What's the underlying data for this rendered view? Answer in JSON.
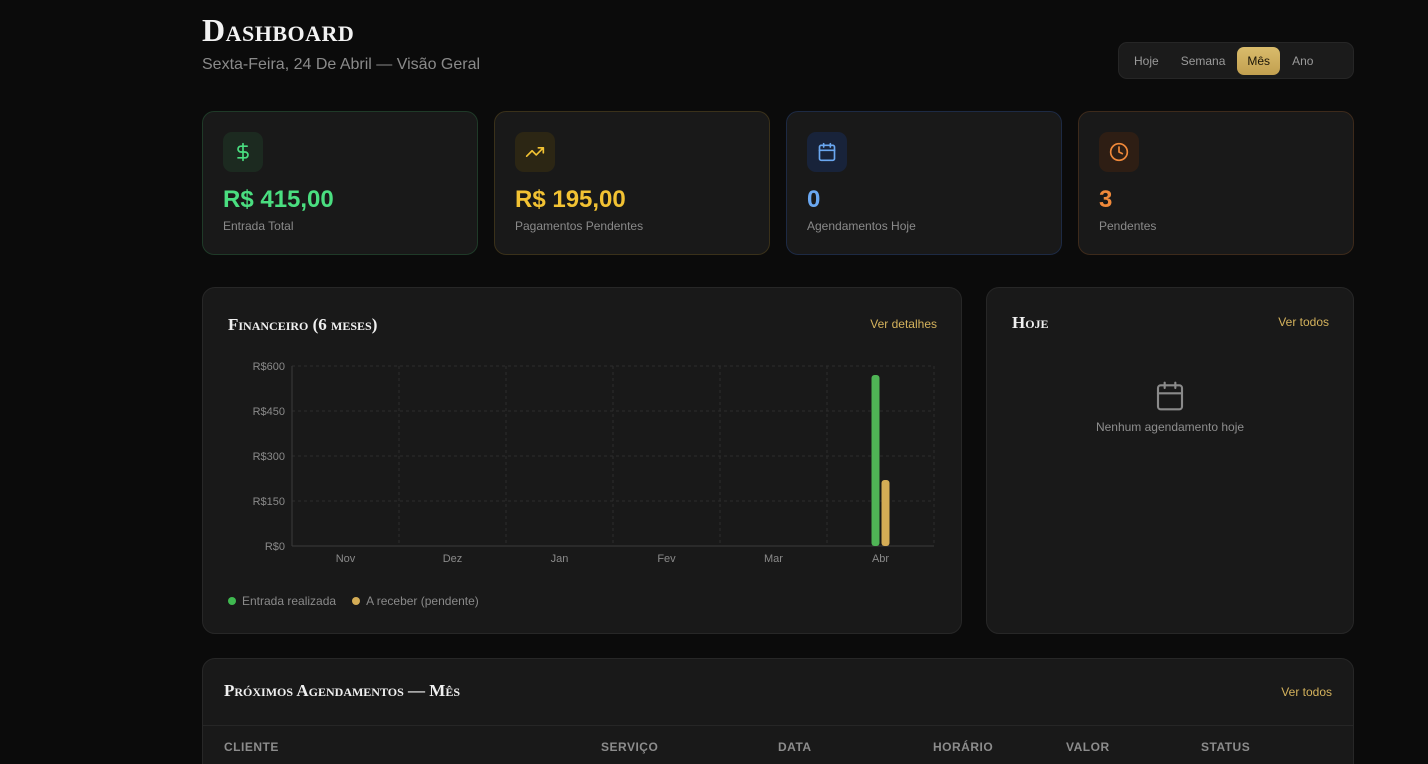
{
  "header": {
    "title": "Dashboard",
    "subtitle": "Sexta-Feira, 24 De Abril — Visão Geral",
    "periods": [
      "Hoje",
      "Semana",
      "Mês",
      "Ano"
    ],
    "active_period": "Mês"
  },
  "stats": [
    {
      "value": "R$ 415,00",
      "label": "Entrada Total",
      "icon": "dollar-icon",
      "color": "#4ade80",
      "icon_bg": "#1c2a20",
      "border": "#1f3a28"
    },
    {
      "value": "R$ 195,00",
      "label": "Pagamentos Pendentes",
      "icon": "trending-up-icon",
      "color": "#f2c233",
      "icon_bg": "#2c2614",
      "border": "#3a311a"
    },
    {
      "value": "0",
      "label": "Agendamentos Hoje",
      "icon": "calendar-icon",
      "color": "#6aa7f0",
      "icon_bg": "#18233a",
      "border": "#1d2a44"
    },
    {
      "value": "3",
      "label": "Pendentes",
      "icon": "clock-icon",
      "color": "#f0893a",
      "icon_bg": "#2e1e14",
      "border": "#3d2a1b"
    }
  ],
  "finance": {
    "title": "Financeiro (6 meses)",
    "link": "Ver detalhes",
    "legend": [
      {
        "label": "Entrada realizada",
        "color": "#3fb950"
      },
      {
        "label": "A receber (pendente)",
        "color": "#d4ac55"
      }
    ]
  },
  "chart_data": {
    "type": "bar",
    "categories": [
      "Nov",
      "Dez",
      "Jan",
      "Fev",
      "Mar",
      "Abr"
    ],
    "series": [
      {
        "name": "Entrada realizada",
        "values": [
          0,
          0,
          0,
          0,
          0,
          570
        ],
        "color": "#4fb455"
      },
      {
        "name": "A receber (pendente)",
        "values": [
          0,
          0,
          0,
          0,
          0,
          220
        ],
        "color": "#d4ac55"
      }
    ],
    "ylim": [
      0,
      600
    ],
    "yticks": [
      0,
      150,
      300,
      450,
      600
    ],
    "ytick_labels": [
      "R$0",
      "R$150",
      "R$300",
      "R$450",
      "R$600"
    ],
    "grid": true
  },
  "today": {
    "title": "Hoje",
    "link": "Ver todos",
    "empty_text": "Nenhum agendamento hoje"
  },
  "upcoming": {
    "title": "Próximos Agendamentos — Mês",
    "link": "Ver todos",
    "columns": [
      "CLIENTE",
      "SERVIÇO",
      "DATA",
      "HORÁRIO",
      "VALOR",
      "STATUS"
    ]
  }
}
